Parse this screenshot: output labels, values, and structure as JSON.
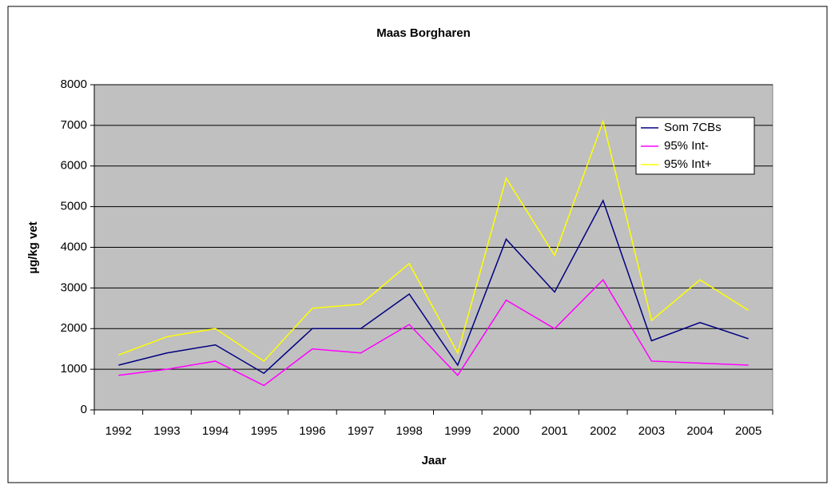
{
  "chart_data": {
    "type": "line",
    "title": "Maas Borgharen",
    "x_label": "Jaar",
    "y_label": "µg/kg vet",
    "categories": [
      "1992",
      "1993",
      "1994",
      "1995",
      "1996",
      "1997",
      "1998",
      "1999",
      "2000",
      "2001",
      "2002",
      "2003",
      "2004",
      "2005"
    ],
    "series": [
      {
        "name": "Som 7CBs",
        "color": "#000080",
        "values": [
          1100,
          1400,
          1600,
          900,
          2000,
          2000,
          2850,
          1100,
          4200,
          2900,
          5150,
          1700,
          2150,
          1750
        ]
      },
      {
        "name": "95% Int-",
        "color": "#ff00ff",
        "values": [
          850,
          1000,
          1200,
          600,
          1500,
          1400,
          2100,
          850,
          2700,
          2000,
          3200,
          1200,
          1150,
          1100
        ]
      },
      {
        "name": "95% Int+",
        "color": "#ffff00",
        "values": [
          1350,
          1800,
          2000,
          1200,
          2500,
          2600,
          3600,
          1400,
          5700,
          3800,
          7100,
          2200,
          3200,
          2450
        ]
      }
    ],
    "ylim": [
      0,
      8000
    ],
    "yticks": [
      0,
      1000,
      2000,
      3000,
      4000,
      5000,
      6000,
      7000,
      8000
    ],
    "grid": true,
    "legend": "top-right",
    "plot_background": "#c0c0c0"
  }
}
